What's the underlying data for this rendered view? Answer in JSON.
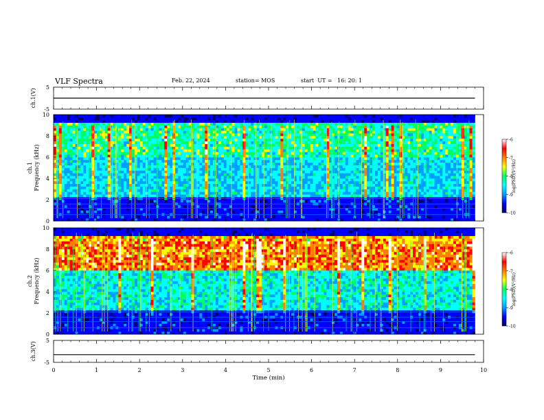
{
  "header": {
    "title": "VLF Spectra",
    "date": "Feb. 22, 2024",
    "station": "station= MOS",
    "start": "start  UT =   16: 20: 1"
  },
  "chart_data": [
    {
      "type": "line",
      "panel": "ch1-time-series",
      "ylabel": "ch.1(V)",
      "ylim": [
        -5,
        5
      ],
      "yticks": [
        "5",
        "-5"
      ],
      "xlim": [
        0,
        10
      ],
      "series": [
        {
          "x": [
            0,
            9.8
          ],
          "values": [
            0,
            0
          ]
        }
      ]
    },
    {
      "type": "heatmap",
      "panel": "ch1-spectrogram",
      "ylabel_lines": [
        "ch.1",
        "Frequency (kHz)"
      ],
      "ylim": [
        0,
        10
      ],
      "yticks": [
        "0",
        "2",
        "4",
        "6",
        "8",
        "10"
      ],
      "xlim": [
        0,
        10
      ],
      "data_extent_x": 9.8,
      "colorbar": {
        "label": "log(PSD)(V²/Hz)",
        "range": [
          -10,
          -6
        ],
        "ticks": [
          "-6",
          "-7",
          "-8",
          "-9",
          "-10"
        ]
      }
    },
    {
      "type": "heatmap",
      "panel": "ch2-spectrogram",
      "ylabel_lines": [
        "ch.2",
        "Frequency (kHz)"
      ],
      "ylim": [
        0,
        10
      ],
      "yticks": [
        "0",
        "2",
        "4",
        "6",
        "8",
        "10"
      ],
      "xlim": [
        0,
        10
      ],
      "data_extent_x": 9.8,
      "colorbar": {
        "label": "log(PSD)(V²/Hz)",
        "range": [
          -10,
          -6
        ],
        "ticks": [
          "-6",
          "-7",
          "-8",
          "-9",
          "-10"
        ]
      }
    },
    {
      "type": "line",
      "panel": "ch3-time-series",
      "ylabel": "ch.3(V)",
      "ylim": [
        -5,
        5
      ],
      "yticks": [
        "5",
        "-5"
      ],
      "xlim": [
        0,
        10
      ],
      "xlabel": "Time  (min)",
      "xticks": [
        "0",
        "1",
        "2",
        "3",
        "4",
        "5",
        "6",
        "7",
        "8",
        "9",
        "10"
      ],
      "series": [
        {
          "x": [
            0,
            9.8
          ],
          "values": [
            -1.5,
            -1.5
          ]
        }
      ]
    }
  ],
  "colors": {
    "background": "#000033",
    "scale": [
      "#000066",
      "#0000ff",
      "#00a0ff",
      "#00ffff",
      "#00ff66",
      "#ffff00",
      "#ff8000",
      "#ff0000",
      "#ffffff"
    ]
  }
}
